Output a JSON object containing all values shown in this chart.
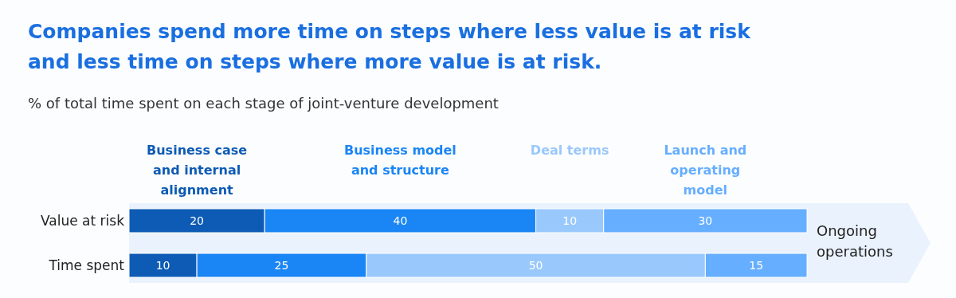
{
  "chart_data": {
    "type": "bar",
    "orientation": "horizontal",
    "stacked": true,
    "title": "Companies spend more time on steps where less value is at risk and less time on steps where more value is at risk.",
    "subtitle": "% of total time spent on each stage of joint-venture development",
    "categories": [
      "Value at risk",
      "Time spent"
    ],
    "series": [
      {
        "name": "Business case and internal alignment",
        "color": "#0d5bb5",
        "values": [
          20,
          10
        ]
      },
      {
        "name": "Business model and structure",
        "color": "#1a85f5",
        "values": [
          40,
          25
        ]
      },
      {
        "name": "Deal terms",
        "color": "#99c8fc",
        "values": [
          10,
          50
        ]
      },
      {
        "name": "Launch and operating model",
        "color": "#66aeff",
        "values": [
          30,
          15
        ]
      }
    ],
    "xlim": [
      0,
      100
    ],
    "tick_labels": "y",
    "data_labels": true,
    "legend": "top",
    "annotations": [
      "Ongoing operations"
    ]
  }
}
